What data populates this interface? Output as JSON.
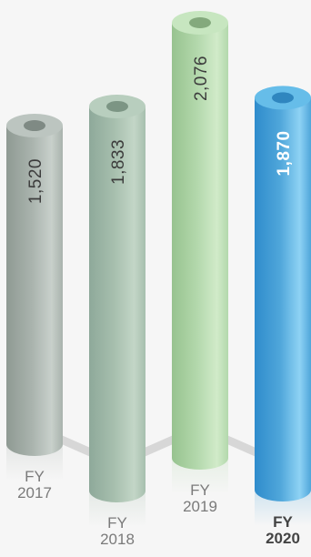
{
  "chart_data": {
    "type": "bar",
    "title": "",
    "xlabel": "",
    "ylabel": "",
    "categories": [
      {
        "top": "FY",
        "bottom": "2017"
      },
      {
        "top": "FY",
        "bottom": "2018"
      },
      {
        "top": "FY",
        "bottom": "2019"
      },
      {
        "top": "FY",
        "bottom": "2020"
      }
    ],
    "values": [
      1520,
      1833,
      2076,
      1870
    ],
    "value_labels": [
      "1,520",
      "1,833",
      "2,076",
      "1,870"
    ],
    "highlight_index": 3,
    "ylim": [
      0,
      2076
    ],
    "colors": {
      "bars": [
        "#a9b3ad",
        "#a7bfae",
        "#b3d8ac",
        "#4fa6da"
      ],
      "bars_light": [
        "#c8d0cb",
        "#c3d6c7",
        "#d1ebc9",
        "#8ed2f4"
      ],
      "bars_dark": [
        "#8f9a93",
        "#8ea99a",
        "#97c38f",
        "#2f8ccc"
      ],
      "caps": [
        "#bcc5c0",
        "#b8cebe",
        "#c7e6c0",
        "#66bde9"
      ],
      "holes": [
        "#7f8a84",
        "#7c9584",
        "#84a97d",
        "#2f86bf"
      ],
      "value_text": [
        "#3c3c3c",
        "#3c3c3c",
        "#3c3c3c",
        "#ffffff"
      ],
      "connector": "#d7d7d7"
    }
  }
}
